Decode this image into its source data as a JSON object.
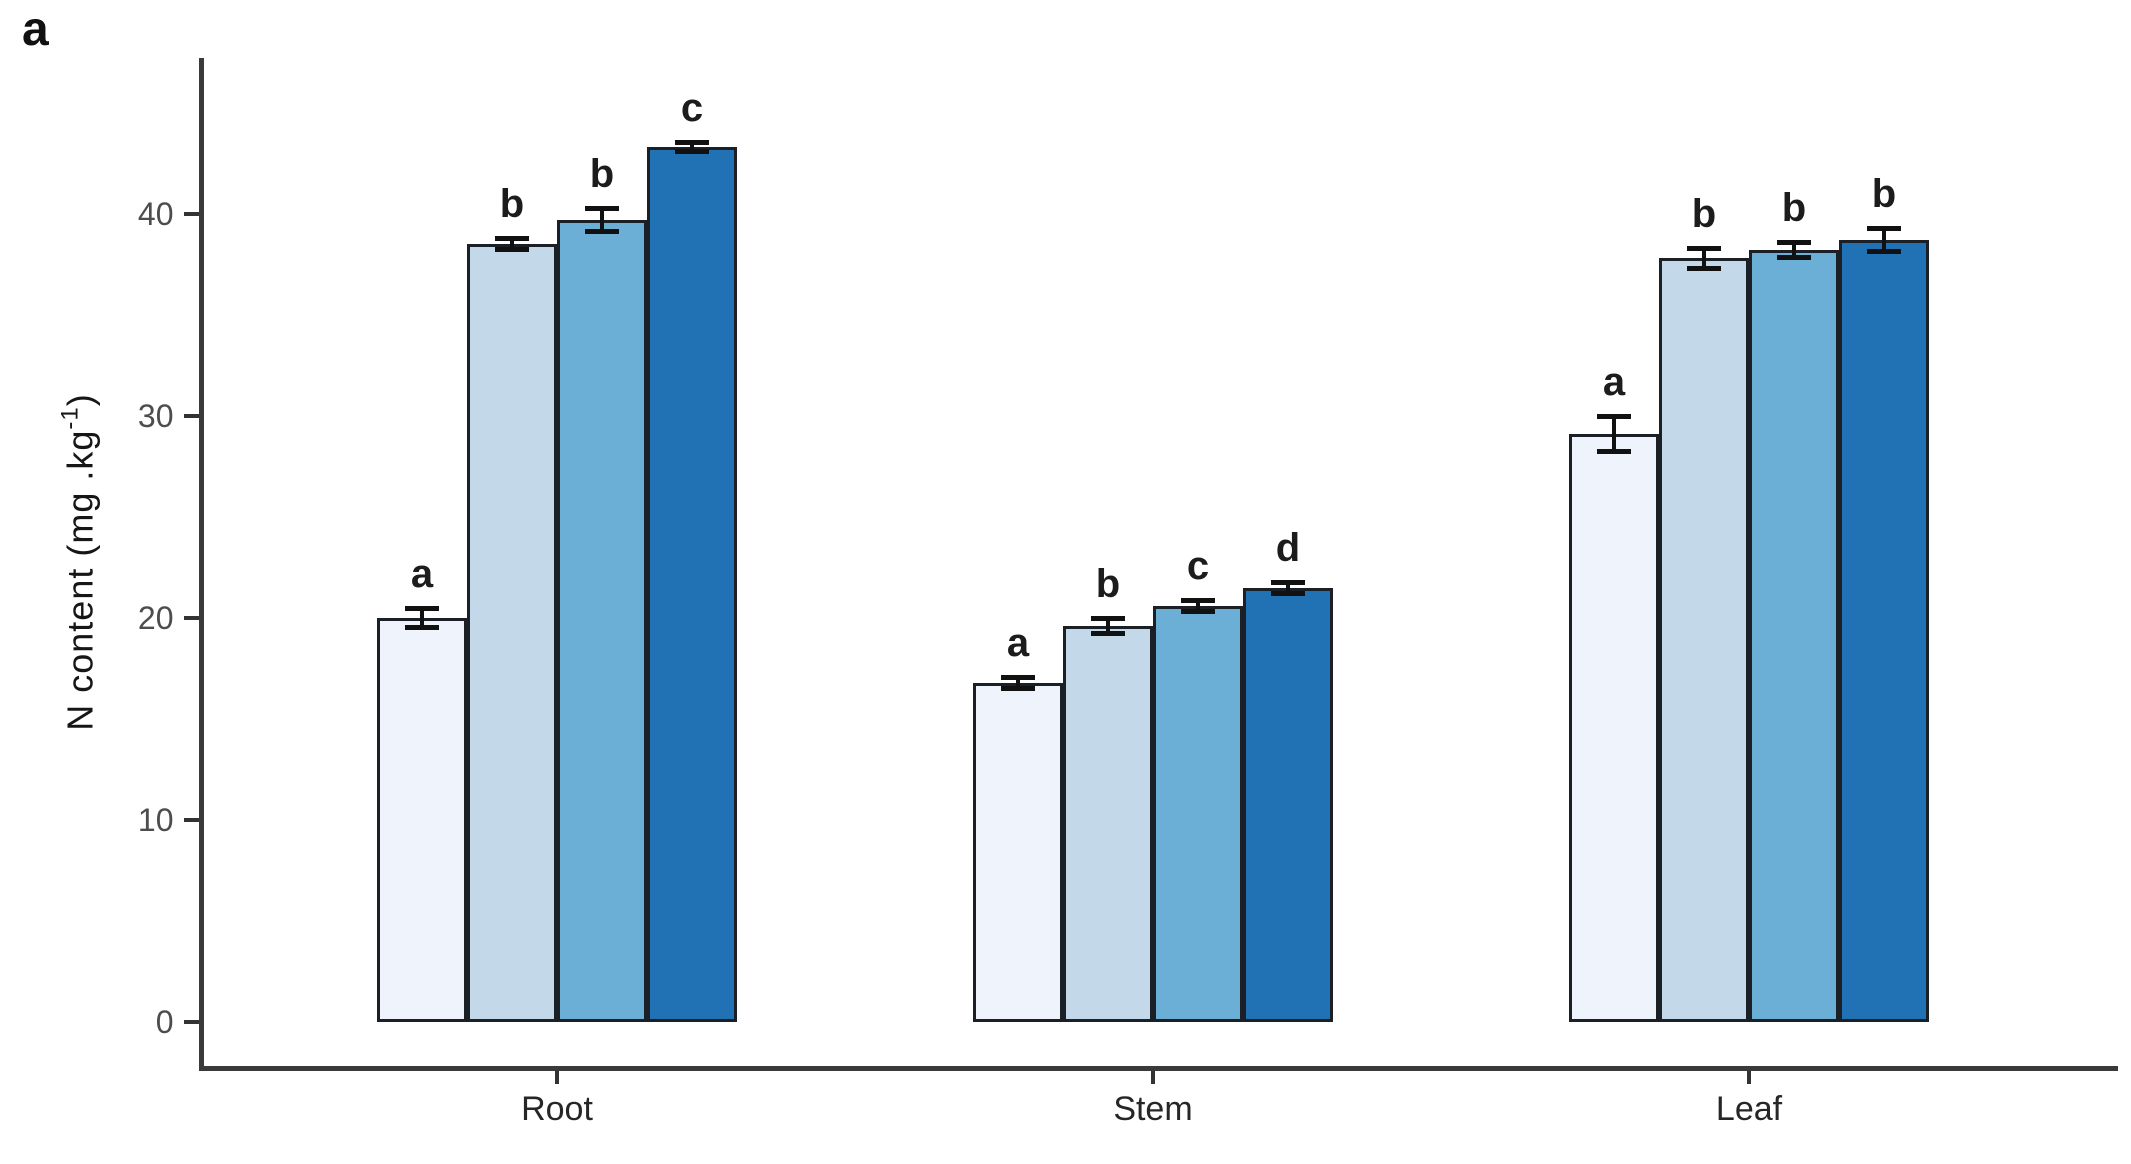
{
  "figure": {
    "panel_label": "a",
    "background": "#ffffff"
  },
  "chart_data": {
    "type": "bar",
    "title": "",
    "xlabel": "",
    "ylabel": {
      "text": "N content (mg .kg",
      "superscript": "-1",
      "suffix": ")"
    },
    "categories": [
      "Root",
      "Stem",
      "Leaf"
    ],
    "yticks": [
      "0",
      "10",
      "20",
      "30",
      "40"
    ],
    "ytick_values": [
      0,
      10,
      20,
      30,
      40
    ],
    "ylim": [
      0,
      47.5
    ],
    "grid": false,
    "legend": "none",
    "colors": {
      "bar_fills": [
        "#EFF3FB",
        "#C3D8E8",
        "#6BAED6",
        "#2171B5"
      ],
      "bar_outline": "#1b1f26",
      "axis": "#3a3a3a",
      "tick_label": "#4d4d4d",
      "error_bar": "#111111"
    },
    "series": [
      {
        "fill": "#EFF3FB",
        "values": [
          20.0,
          16.8,
          29.1
        ],
        "errors": [
          0.5,
          0.3,
          0.9
        ],
        "letters": [
          "a",
          "a",
          "a"
        ]
      },
      {
        "fill": "#C3D8E8",
        "values": [
          38.5,
          19.6,
          37.8
        ],
        "errors": [
          0.3,
          0.4,
          0.5
        ],
        "letters": [
          "b",
          "b",
          "b"
        ]
      },
      {
        "fill": "#6BAED6",
        "values": [
          39.7,
          20.6,
          38.2
        ],
        "errors": [
          0.6,
          0.3,
          0.4
        ],
        "letters": [
          "b",
          "c",
          "b"
        ]
      },
      {
        "fill": "#2171B5",
        "values": [
          43.3,
          21.5,
          38.7
        ],
        "errors": [
          0.25,
          0.3,
          0.6
        ],
        "letters": [
          "c",
          "d",
          "b"
        ]
      }
    ]
  }
}
